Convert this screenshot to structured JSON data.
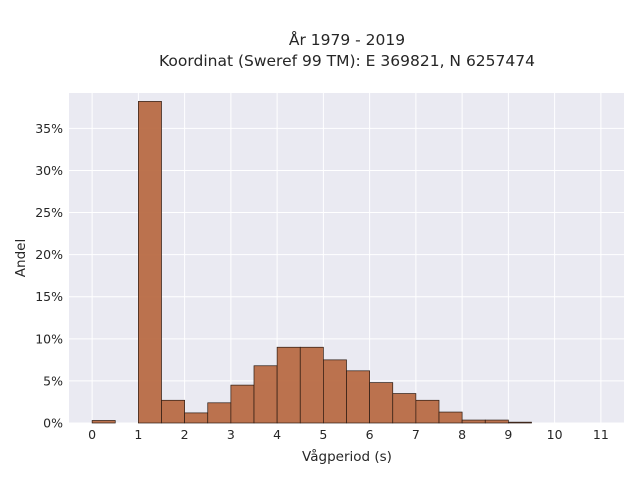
{
  "chart_data": {
    "type": "bar",
    "title_lines": [
      "År 1979 - 2019",
      "Koordinat (Sweref 99 TM): E 369821, N 6257474"
    ],
    "xlabel": "Vågperiod (s)",
    "ylabel": "Andel",
    "xlim": [
      -0.5,
      11.5
    ],
    "ylim": [
      0,
      39.2
    ],
    "x_ticks": [
      0,
      1,
      2,
      3,
      4,
      5,
      6,
      7,
      8,
      9,
      10,
      11
    ],
    "x_tick_labels": [
      "0",
      "1",
      "2",
      "3",
      "4",
      "5",
      "6",
      "7",
      "8",
      "9",
      "10",
      "11"
    ],
    "y_ticks": [
      0,
      5,
      10,
      15,
      20,
      25,
      30,
      35
    ],
    "y_tick_labels": [
      "0%",
      "5%",
      "10%",
      "15%",
      "20%",
      "25%",
      "30%",
      "35%"
    ],
    "bin_width": 0.5,
    "bins": [
      {
        "start": 0.0,
        "end": 0.5,
        "value": 0.3
      },
      {
        "start": 0.5,
        "end": 1.0,
        "value": 0.0
      },
      {
        "start": 1.0,
        "end": 1.5,
        "value": 38.2
      },
      {
        "start": 1.5,
        "end": 2.0,
        "value": 2.7
      },
      {
        "start": 2.0,
        "end": 2.5,
        "value": 1.2
      },
      {
        "start": 2.5,
        "end": 3.0,
        "value": 2.4
      },
      {
        "start": 3.0,
        "end": 3.5,
        "value": 4.5
      },
      {
        "start": 3.5,
        "end": 4.0,
        "value": 6.8
      },
      {
        "start": 4.0,
        "end": 4.5,
        "value": 9.0
      },
      {
        "start": 4.5,
        "end": 5.0,
        "value": 9.0
      },
      {
        "start": 5.0,
        "end": 5.5,
        "value": 7.5
      },
      {
        "start": 5.5,
        "end": 6.0,
        "value": 6.2
      },
      {
        "start": 6.0,
        "end": 6.5,
        "value": 4.8
      },
      {
        "start": 6.5,
        "end": 7.0,
        "value": 3.5
      },
      {
        "start": 7.0,
        "end": 7.5,
        "value": 2.7
      },
      {
        "start": 7.5,
        "end": 8.0,
        "value": 1.3
      },
      {
        "start": 8.0,
        "end": 8.5,
        "value": 0.35
      },
      {
        "start": 8.5,
        "end": 9.0,
        "value": 0.35
      },
      {
        "start": 9.0,
        "end": 9.5,
        "value": 0.1
      }
    ],
    "grid": true,
    "colors": {
      "bar_fill": "#b86b45",
      "bar_edge": "#2b1a12",
      "plot_background": "#eaeaf2",
      "grid": "#ffffff"
    }
  }
}
